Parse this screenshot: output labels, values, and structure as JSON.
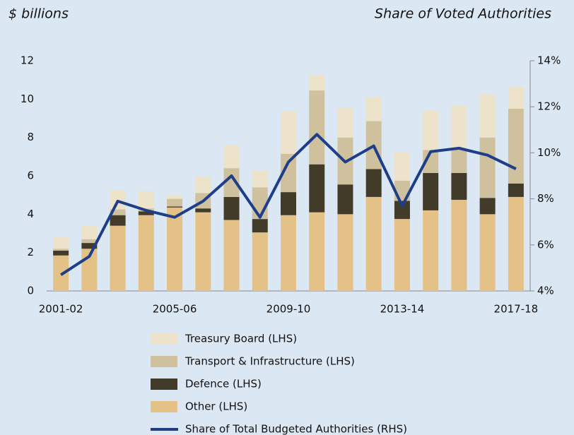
{
  "chart_data": {
    "type": "bar",
    "y_label": "$ billions",
    "y2_label": "Share of Voted Authorities",
    "categories": [
      "2001-02",
      null,
      null,
      null,
      "2005-06",
      null,
      null,
      null,
      "2009-10",
      null,
      null,
      null,
      "2013-14",
      null,
      null,
      null,
      "2017-18"
    ],
    "stacked": true,
    "series": [
      {
        "name": "Other (LHS)",
        "color": "#e4c187",
        "values": [
          1.85,
          2.2,
          3.4,
          3.95,
          4.35,
          4.1,
          3.7,
          3.05,
          3.95,
          4.1,
          4.0,
          4.9,
          3.75,
          4.2,
          4.75,
          4.0,
          4.9
        ]
      },
      {
        "name": "Defence (LHS)",
        "color": "#433b29",
        "values": [
          0.25,
          0.3,
          0.55,
          0.2,
          0.05,
          0.2,
          1.2,
          0.7,
          1.2,
          2.5,
          1.55,
          1.45,
          0.95,
          1.95,
          1.4,
          0.85,
          0.7
        ]
      },
      {
        "name": "Transport & Infrastructure (LHS)",
        "color": "#cfc19e",
        "values": [
          0.1,
          0.2,
          0.3,
          0.15,
          0.4,
          0.8,
          1.5,
          1.65,
          2.0,
          3.85,
          2.45,
          2.5,
          1.05,
          1.2,
          1.25,
          3.15,
          3.9
        ]
      },
      {
        "name": "Treasury Board (LHS)",
        "color": "#ece3ca",
        "values": [
          0.6,
          0.7,
          1.0,
          0.9,
          0.2,
          0.85,
          1.2,
          0.85,
          2.2,
          0.8,
          1.55,
          1.25,
          1.5,
          2.05,
          2.25,
          2.25,
          1.15
        ]
      },
      {
        "name": "Share of Total Budgeted Authorities (RHS)",
        "color": "#1f3e89",
        "type": "line",
        "axis": "y2",
        "values": [
          4.7,
          5.5,
          7.9,
          7.5,
          7.2,
          7.9,
          9.0,
          7.2,
          9.6,
          10.8,
          9.6,
          10.3,
          7.7,
          10.05,
          10.2,
          9.9,
          9.3
        ]
      }
    ],
    "legend_order": [
      3,
      2,
      1,
      0,
      4
    ],
    "ylim": [
      0,
      12
    ],
    "yticks": [
      0,
      2,
      4,
      6,
      8,
      10,
      12
    ],
    "y2lim": [
      4,
      14
    ],
    "y2ticks": [
      {
        "value": 4,
        "label": "4%"
      },
      {
        "value": 6,
        "label": "6%"
      },
      {
        "value": 8,
        "label": "8%"
      },
      {
        "value": 10,
        "label": "10%"
      },
      {
        "value": 12,
        "label": "12%"
      },
      {
        "value": 14,
        "label": "14%"
      }
    ],
    "grid": false
  }
}
